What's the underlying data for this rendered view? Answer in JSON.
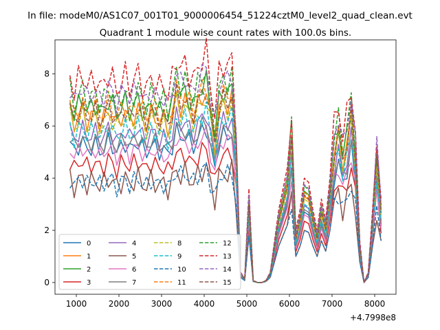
{
  "chart_data": {
    "type": "line",
    "suptitle": "In file: modeM0/AS1C07_001T01_9000006454_51224cztM0_level2_quad_clean.evt",
    "title": "Quadrant 1 module wise count rates with 100.0s bins.",
    "xlabel": "",
    "ylabel": "",
    "x_offset_label": "+4.7998e8",
    "xlim": [
      500,
      8500
    ],
    "ylim": [
      -0.45,
      9.3
    ],
    "xticks": [
      1000,
      2000,
      3000,
      4000,
      5000,
      6000,
      7000,
      8000
    ],
    "xtick_labels": [
      "1000",
      "2000",
      "3000",
      "4000",
      "5000",
      "6000",
      "7000",
      "8000"
    ],
    "yticks": [
      0,
      2,
      4,
      6,
      8
    ],
    "ytick_labels": [
      "0",
      "2",
      "4",
      "6",
      "8"
    ],
    "legend_location": "lower-left",
    "legend_columns": 4,
    "x": [
      850,
      950,
      1050,
      1150,
      1250,
      1350,
      1450,
      1550,
      1650,
      1750,
      1850,
      1950,
      2050,
      2150,
      2250,
      2350,
      2450,
      2550,
      2650,
      2750,
      2850,
      2950,
      3050,
      3150,
      3250,
      3350,
      3450,
      3550,
      3650,
      3750,
      3850,
      3950,
      4050,
      4150,
      4250,
      4350,
      4450,
      4550,
      4650,
      4750,
      4850,
      4950,
      5050,
      5150,
      5250,
      5350,
      5450,
      5550,
      5650,
      5750,
      5850,
      5950,
      6050,
      6150,
      6250,
      6350,
      6450,
      6550,
      6650,
      6750,
      6850,
      6950,
      7050,
      7150,
      7250,
      7350,
      7450,
      7550,
      7650,
      7750,
      7850,
      7950,
      8050,
      8150
    ],
    "profile": [
      1.0,
      0.92,
      0.97,
      1.0,
      0.94,
      0.96,
      0.98,
      0.93,
      0.95,
      1.0,
      0.97,
      0.92,
      0.96,
      0.99,
      0.94,
      0.97,
      1.0,
      0.95,
      0.92,
      0.98,
      0.96,
      0.93,
      0.95,
      0.9,
      0.97,
      1.08,
      1.02,
      1.05,
      1.0,
      0.96,
      1.03,
      1.07,
      1.1,
      0.95,
      0.8,
      1.0,
      1.05,
      1.03,
      1.07,
      0.75,
      0.05,
      0.02,
      0.45,
      0.01,
      0.0,
      0.0,
      0.01,
      0.05,
      0.2,
      0.35,
      0.45,
      0.55,
      0.8,
      0.25,
      0.35,
      0.5,
      0.48,
      0.35,
      0.25,
      0.4,
      0.3,
      0.5,
      0.75,
      0.85,
      0.7,
      0.8,
      0.95,
      0.7,
      0.2,
      0.0,
      0.05,
      0.35,
      0.7,
      0.4
    ],
    "series": [
      {
        "name": "0",
        "color": "#1f77b4",
        "dash": "solid",
        "level": 5.4,
        "jitter": 0.18
      },
      {
        "name": "1",
        "color": "#ff7f0e",
        "dash": "solid",
        "level": 6.6,
        "jitter": 0.2
      },
      {
        "name": "2",
        "color": "#2ca02c",
        "dash": "solid",
        "level": 7.0,
        "jitter": 0.22
      },
      {
        "name": "3",
        "color": "#d62728",
        "dash": "solid",
        "level": 4.7,
        "jitter": 0.2
      },
      {
        "name": "4",
        "color": "#9467bd",
        "dash": "solid",
        "level": 5.9,
        "jitter": 0.18
      },
      {
        "name": "5",
        "color": "#8c564b",
        "dash": "solid",
        "level": 4.0,
        "jitter": 0.22
      },
      {
        "name": "6",
        "color": "#e377c2",
        "dash": "solid",
        "level": 5.2,
        "jitter": 0.18
      },
      {
        "name": "7",
        "color": "#7f7f7f",
        "dash": "solid",
        "level": 5.6,
        "jitter": 0.18
      },
      {
        "name": "8",
        "color": "#bcbd22",
        "dash": "dashed",
        "level": 6.4,
        "jitter": 0.2
      },
      {
        "name": "9",
        "color": "#17becf",
        "dash": "dashed",
        "level": 6.0,
        "jitter": 0.2
      },
      {
        "name": "10",
        "color": "#1f77b4",
        "dash": "dashed",
        "level": 4.0,
        "jitter": 0.2
      },
      {
        "name": "11",
        "color": "#ff7f0e",
        "dash": "dashed",
        "level": 6.9,
        "jitter": 0.22
      },
      {
        "name": "12",
        "color": "#2ca02c",
        "dash": "dashed",
        "level": 7.4,
        "jitter": 0.22
      },
      {
        "name": "13",
        "color": "#d62728",
        "dash": "dashed",
        "level": 8.0,
        "jitter": 0.28
      },
      {
        "name": "14",
        "color": "#9467bd",
        "dash": "dashed",
        "level": 7.5,
        "jitter": 0.22
      },
      {
        "name": "15",
        "color": "#8c564b",
        "dash": "dashed",
        "level": 6.7,
        "jitter": 0.2
      }
    ]
  }
}
